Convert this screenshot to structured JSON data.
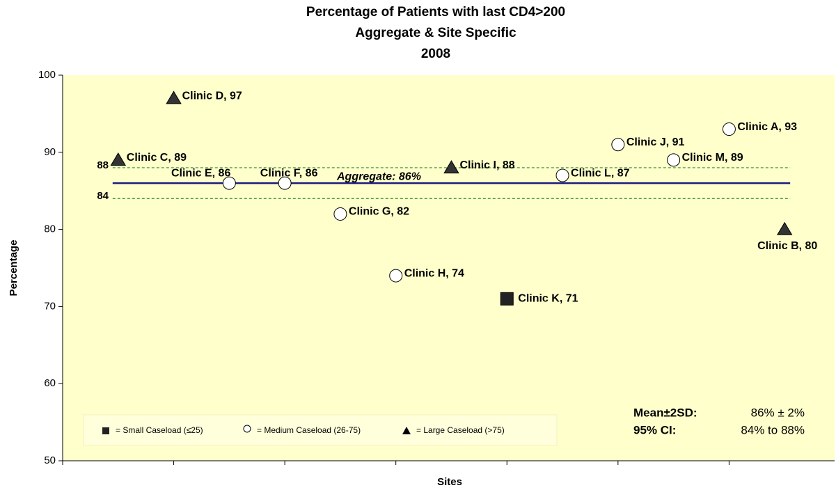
{
  "chart_data": {
    "type": "scatter",
    "title": [
      "Percentage of Patients with last CD4>200",
      "Aggregate & Site Specific",
      "2008"
    ],
    "y_label": "Percentage",
    "x_label": "Sites",
    "xlim": [
      0,
      6.95
    ],
    "xticks": [
      0,
      1,
      2,
      3,
      4,
      5,
      6
    ],
    "ylim": [
      50,
      100
    ],
    "yticks": [
      50,
      60,
      70,
      80,
      90,
      100
    ],
    "background": "#ffffcc",
    "series": [
      {
        "name": "= Small Caseload (≤25)",
        "marker": "square",
        "color": "#222222",
        "x": [
          4
        ],
        "values": [
          71
        ],
        "value_labels": [
          "Clinic K, 71"
        ]
      },
      {
        "name": "= Medium Caseload  (26-75)",
        "marker": "circle",
        "color": "#ffffff",
        "x": [
          1.5,
          2,
          2.5,
          3,
          4.5,
          5,
          5.5,
          6
        ],
        "values": [
          86,
          86,
          82,
          74,
          87,
          91,
          89,
          93
        ],
        "value_labels": [
          "Clinic E, 86",
          "Clinic F, 86",
          "Clinic G, 82",
          "Clinic H, 74",
          "Clinic L, 87",
          "Clinic J, 91",
          "Clinic M, 89",
          "Clinic A, 93"
        ]
      },
      {
        "name": "= Large Caseload (>75)",
        "marker": "triangle",
        "color": "#333333",
        "x": [
          0.5,
          1,
          3.5,
          6.5
        ],
        "values": [
          89,
          97,
          88,
          80
        ],
        "value_labels": [
          "Clinic C, 89",
          "Clinic D, 97",
          "Clinic I, 88",
          "Clinic B, 80"
        ]
      }
    ],
    "reference_lines": [
      {
        "value": 86,
        "label": "Aggregate: 86%",
        "style": "solid",
        "color": "#1a1a80"
      },
      {
        "value": 88,
        "label": "88",
        "style": "dashed",
        "color": "#2e8b2e"
      },
      {
        "value": 84,
        "label": "84",
        "style": "dashed",
        "color": "#2e8b2e"
      }
    ],
    "stats": [
      {
        "label": "Mean±2SD:",
        "text": "86% ± 2%"
      },
      {
        "label": "95% CI:",
        "text": "84% to 88%"
      }
    ]
  }
}
